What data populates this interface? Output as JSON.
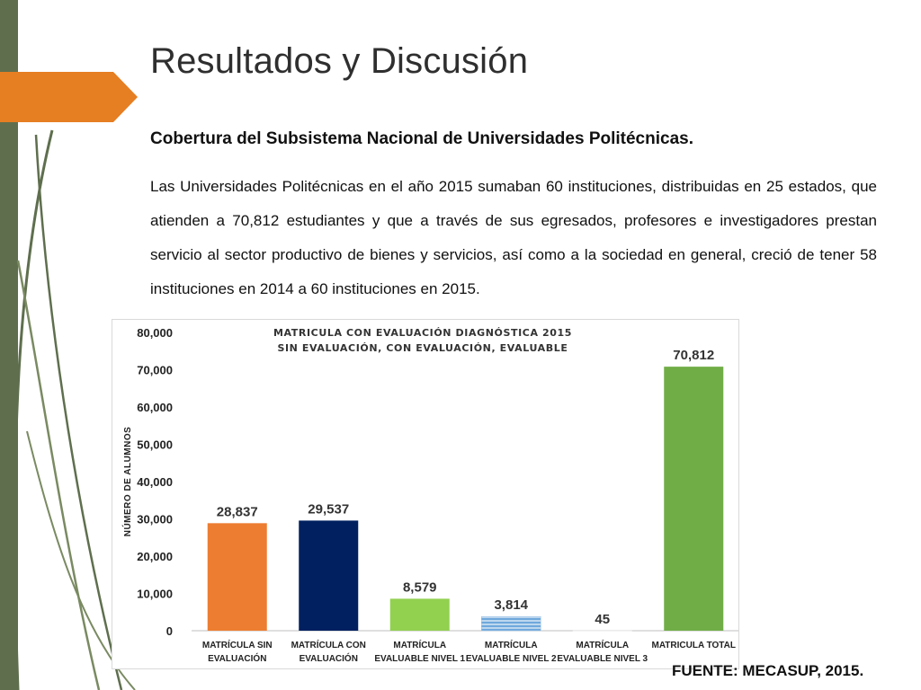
{
  "slide": {
    "title": "Resultados y Discusión",
    "subtitle": "Cobertura del Subsistema Nacional de Universidades Politécnicas.",
    "body": "Las Universidades Politécnicas en el año 2015 sumaban 60 instituciones, distribuidas en 25 estados, que atienden a 70,812 estudiantes y que a través de sus egresados, profesores e investigadores prestan servicio al sector productivo de bienes y servicios, así como a la sociedad en general, creció de tener 58 instituciones en 2014 a 60 instituciones en 2015.",
    "source": "FUENTE: MECASUP, 2015."
  },
  "colors": {
    "left_bar": "#5f6f4e",
    "accent_orange": "#e67e22"
  },
  "chart_data": {
    "type": "bar",
    "title_lines": [
      "MATRICULA CON EVALUACIÓN DIAGNÓSTICA 2015",
      "SIN EVALUACIÓN, CON EVALUACIÓN, EVALUABLE"
    ],
    "ylabel": "NÚMERO DE ALUMNOS",
    "xlabel": "",
    "ylim": [
      0,
      80000
    ],
    "yticks": [
      0,
      10000,
      20000,
      30000,
      40000,
      50000,
      60000,
      70000,
      80000
    ],
    "ytick_labels": [
      "0",
      "10,000",
      "20,000",
      "30,000",
      "40,000",
      "50,000",
      "60,000",
      "70,000",
      "80,000"
    ],
    "grid": false,
    "legend": "none",
    "categories": [
      [
        "MATRÍCULA SIN",
        "EVALUACIÓN"
      ],
      [
        "MATRÍCULA CON",
        "EVALUACIÓN"
      ],
      [
        "MATRÍCULA",
        "EVALUABLE NIVEL 1"
      ],
      [
        "MATRÍCULA",
        "EVALUABLE  NIVEL 2"
      ],
      [
        "MATRÍCULA",
        "EVALUABLE  NIVEL 3"
      ],
      [
        "MATRICULA TOTAL"
      ]
    ],
    "values": [
      28837,
      29537,
      8579,
      3814,
      45,
      70812
    ],
    "value_labels": [
      "28,837",
      "29,537",
      "8,579",
      "3,814",
      "45",
      "70,812"
    ],
    "bar_colors": [
      "#ed7d31",
      "#002060",
      "#92d050",
      "#9dc3e6",
      "#ffffff",
      "#70ad47"
    ]
  }
}
